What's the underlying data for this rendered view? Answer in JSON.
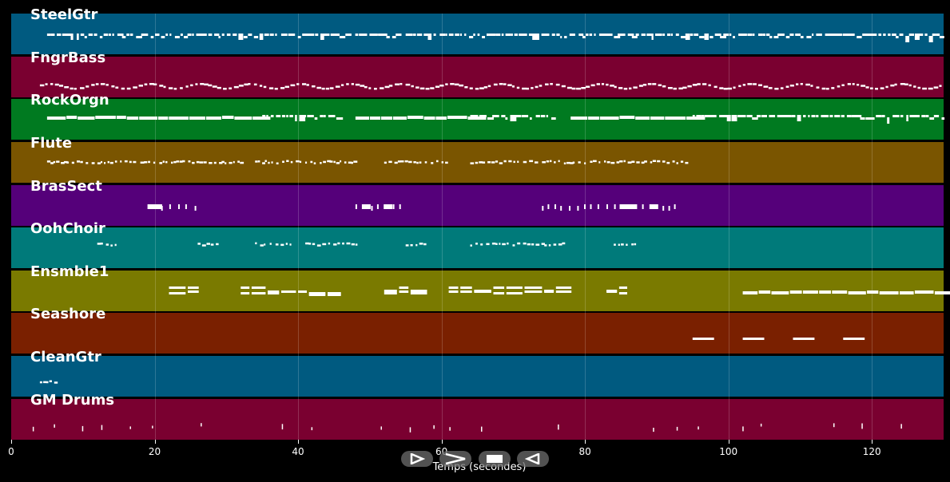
{
  "tracks": [
    {
      "name": "SteelGtr",
      "color": "#005a80",
      "note_color": "#ffffff"
    },
    {
      "name": "FngrBass",
      "color": "#7a0030",
      "note_color": "#ffffff"
    },
    {
      "name": "RockOrgn",
      "color": "#007a20",
      "note_color": "#ffffff"
    },
    {
      "name": "Flute",
      "color": "#7a5500",
      "note_color": "#ffffff"
    },
    {
      "name": "BrasSect",
      "color": "#55007a",
      "note_color": "#ffffff"
    },
    {
      "name": "OohChoir",
      "color": "#007a7a",
      "note_color": "#ffffff"
    },
    {
      "name": "Ensmble1",
      "color": "#7a7a00",
      "note_color": "#ffffff"
    },
    {
      "name": "Seashore",
      "color": "#7a2000",
      "note_color": "#ffffff"
    },
    {
      "name": "CleanGtr",
      "color": "#005a80",
      "note_color": "#ffffff"
    },
    {
      "name": "GM Drums",
      "color": "#7a0030",
      "note_color": "#ffffff"
    }
  ],
  "axis": {
    "xlim": [
      0,
      130
    ],
    "ticks": [
      {
        "value": 0,
        "label": "0"
      },
      {
        "value": 20,
        "label": "20"
      },
      {
        "value": 40,
        "label": "40"
      },
      {
        "value": 60,
        "label": "60"
      },
      {
        "value": 80,
        "label": "80"
      },
      {
        "value": 100,
        "label": "100"
      },
      {
        "value": 120,
        "label": "120"
      }
    ],
    "xlabel": "Temps (secondes)"
  },
  "controls": [
    {
      "name": "play",
      "icon": "play-outline-icon"
    },
    {
      "name": "forward",
      "icon": "forward-icon"
    },
    {
      "name": "stop",
      "icon": "stop-icon"
    },
    {
      "name": "rewind",
      "icon": "rewind-icon"
    }
  ]
}
